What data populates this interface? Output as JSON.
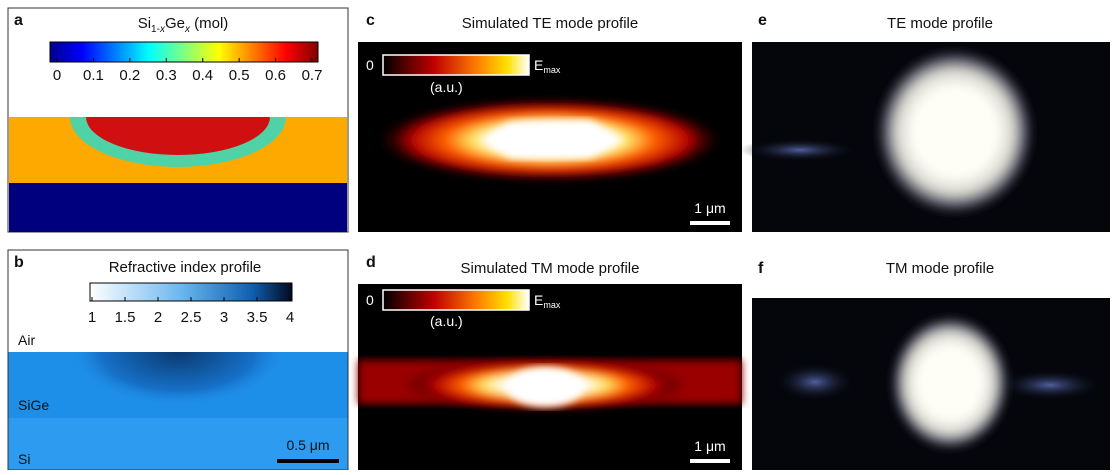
{
  "panels": [
    {
      "label": "a",
      "title": {
        "base1": "Si",
        "sub1": "1-",
        "subvar": "x",
        "base2": "Ge",
        "subvar2": "x",
        "unit": " (mol)"
      },
      "colorbar_ticks": [
        "0",
        "0.1",
        "0.2",
        "0.3",
        "0.4",
        "0.5",
        "0.6",
        "0.7"
      ]
    },
    {
      "label": "b",
      "title": "Refractive index profile",
      "colorbar_ticks": [
        "1",
        "1.5",
        "2",
        "2.5",
        "3",
        "3.5",
        "4"
      ],
      "regions": [
        "Air",
        "SiGe",
        "Si"
      ],
      "scale_bar": "0.5 μm"
    },
    {
      "label": "c",
      "title": "Simulated TE mode profile",
      "colorbar_min": "0",
      "colorbar_max": {
        "base": "E",
        "sub": "max"
      },
      "colorbar_unit": "(a.u.)",
      "scale_bar": "1 μm"
    },
    {
      "label": "d",
      "title": "Simulated TM mode profile",
      "colorbar_min": "0",
      "colorbar_max": {
        "base": "E",
        "sub": "max"
      },
      "colorbar_unit": "(a.u.)",
      "scale_bar": "1 μm"
    },
    {
      "label": "e",
      "title": "TE mode profile"
    },
    {
      "label": "f",
      "title": "TM mode profile"
    }
  ]
}
